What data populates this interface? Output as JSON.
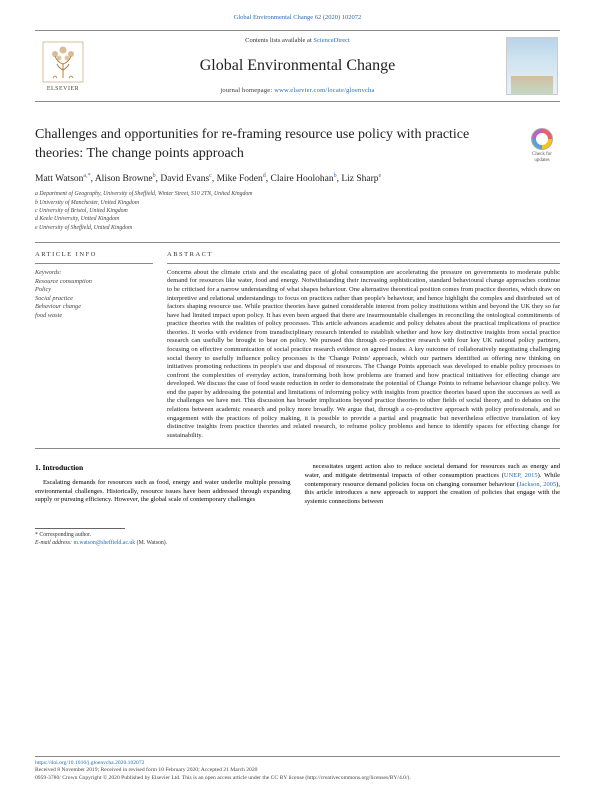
{
  "citation_line": "Global Environmental Change 62 (2020) 102072",
  "header": {
    "contents_prefix": "Contents lists available at ",
    "sciencedirect": "ScienceDirect",
    "journal_title": "Global Environmental Change",
    "homepage_prefix": "journal homepage: ",
    "homepage_url": "www.elsevier.com/locate/gloenvcha",
    "publisher": "ELSEVIER"
  },
  "check_updates": {
    "line1": "Check for",
    "line2": "updates"
  },
  "article": {
    "title": "Challenges and opportunities for re-framing resource use policy with practice theories: The change points approach",
    "authors_html": "Matt Watson<a,*>, Alison Browne<b>, David Evans<c>, Mike Foden<d>, Claire Hoolohan<b>, Liz Sharp<e>",
    "authors": [
      {
        "name": "Matt Watson",
        "sup": "a,*"
      },
      {
        "name": "Alison Browne",
        "sup": "b"
      },
      {
        "name": "David Evans",
        "sup": "c"
      },
      {
        "name": "Mike Foden",
        "sup": "d"
      },
      {
        "name": "Claire Hoolohan",
        "sup": "b"
      },
      {
        "name": "Liz Sharp",
        "sup": "e"
      }
    ],
    "affiliations": [
      "a Department of Geography, University of Sheffield, Winter Street, S10 2TN, United Kingdom",
      "b University of Manchester, United Kingdom",
      "c University of Bristol, United Kingdom",
      "d Keele University, United Kingdom",
      "e University of Sheffield, United Kingdom"
    ]
  },
  "article_info": {
    "heading": "ARTICLE INFO",
    "kw_label": "Keywords:",
    "keywords": [
      "Resource consumption",
      "Policy",
      "Social practice",
      "Behaviour change",
      "food waste"
    ]
  },
  "abstract": {
    "heading": "ABSTRACT",
    "text": "Concerns about the climate crisis and the escalating pace of global consumption are accelerating the pressure on governments to moderate public demand for resources like water, food and energy. Notwithstanding their increasing sophistication, standard behavioural change approaches continue to be criticised for a narrow understanding of what shapes behaviour. One alternative theoretical position comes from practice theories, which draw on interpretive and relational understandings to focus on practices rather than people's behaviour, and hence highlight the complex and distributed set of factors shaping resource use. While practice theories have gained considerable interest from policy institutions within and beyond the UK they so far have had limited impact upon policy. It has even been argued that there are insurmountable challenges in reconciling the ontological commitments of practice theories with the realities of policy processes. This article advances academic and policy debates about the practical implications of practice theories. It works with evidence from transdisciplinary research intended to establish whether and how key distinctive insights from social practice research can usefully be brought to bear on policy. We pursued this through co-productive research with four key UK national policy partners, focusing on effective communication of social practice research evidence on agreed issues. A key outcome of collaboratively negotiating challenging social theory to usefully influence policy processes is the 'Change Points' approach, which our partners identified as offering new thinking on initiatives promoting reductions in people's use and disposal of resources. The Change Points approach was developed to enable policy processes to confront the complexities of everyday action, transforming both how problems are framed and how practical initiatives for effecting change are developed. We discuss the case of food waste reduction in order to demonstrate the potential of Change Points to reframe behaviour change policy. We end the paper by addressing the potential and limitations of informing policy with insights from practice theories based upon the successes as well as the challenges we have met. This discussion has broader implications beyond practice theories to other fields of social theory, and to debates on the relations between academic research and policy more broadly. We argue that, through a co-productive approach with policy professionals, and so engagement with the practices of policy making, it is possible to provide a partial and pragmatic but nevertheless effective translation of key distinctive insights from practice theories and related research, to reframe policy problems and hence to identify spaces for effecting change for sustainability."
  },
  "intro": {
    "heading": "1. Introduction",
    "col1": "Escalating demands for resources such as food, energy and water underlie multiple pressing environmental challenges. Historically, resource issues have been addressed through expanding supply or pursuing efficiency. However, the global scale of contemporary challenges",
    "col2_a": "necessitates urgent action also to reduce societal demand for resources such as energy and water, and mitigate detrimental impacts of other consumption practices (",
    "col2_link1": "UNEP, 2015",
    "col2_b": "). While contemporary resource demand policies focus on changing consumer behaviour (",
    "col2_link2": "Jackson, 2005",
    "col2_c": "), this article introduces a new approach to support the creation of policies that engage with the systemic connections between"
  },
  "footnotes": {
    "corr": "* Corresponding author.",
    "email_label": "E-mail address: ",
    "email": "m.watson@sheffield.ac.uk",
    "email_suffix": " (M. Watson)."
  },
  "footer": {
    "doi": "https://doi.org/10.1016/j.gloenvcha.2020.102072",
    "received": "Received 8 November 2019; Received in revised form 10 February 2020; Accepted 21 March 2020",
    "issn_line": "0959-3780/ Crown Copyright © 2020 Published by Elsevier Ltd. This is an open access article under the CC BY license (http://creativecommons.org/licenses/BY/4.0/)."
  },
  "colors": {
    "link": "#2b6cb0",
    "text": "#222222",
    "muted": "#444444",
    "rule": "#888888"
  }
}
